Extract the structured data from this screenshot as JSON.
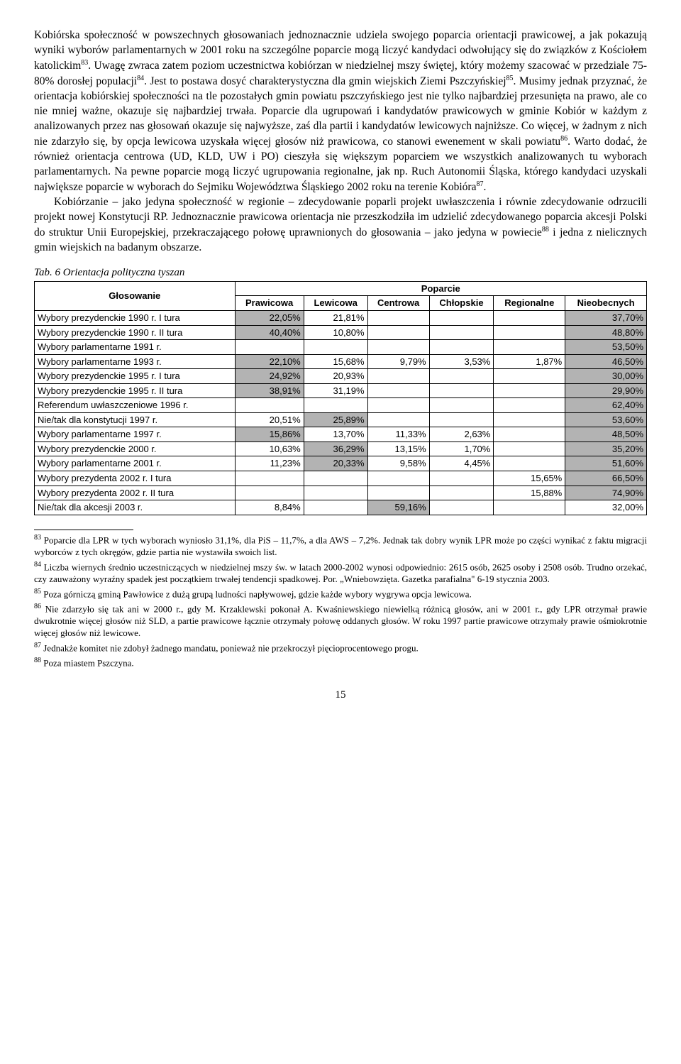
{
  "para1": "Kobiórska społeczność w powszechnych głosowaniach jednoznacznie udziela swojego poparcia orientacji prawicowej, a jak pokazują wyniki wyborów parlamentarnych w 2001 roku na szczególne poparcie mogą liczyć kandydaci odwołujący się do związków z Kościołem katolickim",
  "para1b": ". Uwagę zwraca zatem poziom uczestnictwa kobiórzan w niedzielnej mszy świętej, który możemy szacować w przedziale 75-80% dorosłej populacji",
  "para1c": ". Jest to postawa dosyć charakterystyczna dla gmin wiejskich Ziemi Pszczyńskiej",
  "para1d": ". Musimy jednak przyznać, że orientacja kobiórskiej społeczności na tle pozostałych gmin powiatu pszczyńskiego jest nie tylko najbardziej przesunięta na prawo, ale co nie mniej ważne, okazuje się najbardziej trwała. Poparcie dla ugrupowań i kandydatów prawicowych w gminie Kobiór w każdym z analizowanych przez nas głosowań okazuje się najwyższe, zaś dla partii i kandydatów lewicowych najniższe. Co więcej, w żadnym z nich nie zdarzyło się, by opcja lewicowa uzyskała więcej głosów niż prawicowa, co stanowi ewenement w skali powiatu",
  "para1e": ". Warto dodać, że również orientacja centrowa (UD, KLD, UW i PO) cieszyła się większym poparciem we wszystkich analizowanych tu wyborach parlamentarnych. Na pewne poparcie mogą liczyć ugrupowania regionalne, jak np. Ruch Autonomii Śląska, którego kandydaci uzyskali największe poparcie w wyborach do Sejmiku Województwa Śląskiego 2002 roku na terenie Kobióra",
  "para1f": ".",
  "para2a": "Kobiórzanie – jako jedyna społeczność w regionie – zdecydowanie poparli projekt uwłaszczenia i równie zdecydowanie odrzucili projekt nowej Konstytucji RP. Jednoznacznie prawicowa orientacja nie przeszkodziła im udzielić zdecydowanego poparcia akcesji Polski do struktur Unii Europejskiej, przekraczającego połowę uprawnionych do głosowania – jako jedyna w powiecie",
  "para2b": " i jedna z nielicznych gmin wiejskich na badanym obszarze.",
  "tabcaption": "Tab. 6 Orientacja polityczna tyszan",
  "table": {
    "headers": {
      "glosowanie": "Głosowanie",
      "poparcie": "Poparcie",
      "prawicowa": "Prawicowa",
      "lewicowa": "Lewicowa",
      "centrowa": "Centrowa",
      "chlopskie": "Chłopskie",
      "regionalne": "Regionalne",
      "nieobecnych": "Nieobecnych"
    },
    "rows": [
      {
        "label": "Wybory prezydenckie 1990 r. I tura",
        "c": [
          {
            "v": "22,05%",
            "h": 1
          },
          {
            "v": "21,81%",
            "h": 0
          },
          {
            "v": "",
            "h": 0
          },
          {
            "v": "",
            "h": 0
          },
          {
            "v": "",
            "h": 0
          },
          {
            "v": "37,70%",
            "h": 1
          }
        ]
      },
      {
        "label": "Wybory prezydenckie 1990 r. II tura",
        "c": [
          {
            "v": "40,40%",
            "h": 1
          },
          {
            "v": "10,80%",
            "h": 0
          },
          {
            "v": "",
            "h": 0
          },
          {
            "v": "",
            "h": 0
          },
          {
            "v": "",
            "h": 0
          },
          {
            "v": "48,80%",
            "h": 1
          }
        ]
      },
      {
        "label": "Wybory parlamentarne 1991 r.",
        "c": [
          {
            "v": "",
            "h": 0
          },
          {
            "v": "",
            "h": 0
          },
          {
            "v": "",
            "h": 0
          },
          {
            "v": "",
            "h": 0
          },
          {
            "v": "",
            "h": 0
          },
          {
            "v": "53,50%",
            "h": 1
          }
        ]
      },
      {
        "label": "Wybory parlamentarne 1993 r.",
        "c": [
          {
            "v": "22,10%",
            "h": 1
          },
          {
            "v": "15,68%",
            "h": 0
          },
          {
            "v": "9,79%",
            "h": 0
          },
          {
            "v": "3,53%",
            "h": 0
          },
          {
            "v": "1,87%",
            "h": 0
          },
          {
            "v": "46,50%",
            "h": 1
          }
        ]
      },
      {
        "label": "Wybory prezydenckie 1995 r. I tura",
        "c": [
          {
            "v": "24,92%",
            "h": 1
          },
          {
            "v": "20,93%",
            "h": 0
          },
          {
            "v": "",
            "h": 0
          },
          {
            "v": "",
            "h": 0
          },
          {
            "v": "",
            "h": 0
          },
          {
            "v": "30,00%",
            "h": 1
          }
        ]
      },
      {
        "label": "Wybory prezydenckie 1995 r. II tura",
        "c": [
          {
            "v": "38,91%",
            "h": 1
          },
          {
            "v": "31,19%",
            "h": 0
          },
          {
            "v": "",
            "h": 0
          },
          {
            "v": "",
            "h": 0
          },
          {
            "v": "",
            "h": 0
          },
          {
            "v": "29,90%",
            "h": 1
          }
        ]
      },
      {
        "label": "Referendum uwłaszczeniowe 1996 r.",
        "c": [
          {
            "v": "",
            "h": 0
          },
          {
            "v": "",
            "h": 0
          },
          {
            "v": "",
            "h": 0
          },
          {
            "v": "",
            "h": 0
          },
          {
            "v": "",
            "h": 0
          },
          {
            "v": "62,40%",
            "h": 1
          }
        ]
      },
      {
        "label": "Nie/tak dla konstytucji 1997 r.",
        "c": [
          {
            "v": "20,51%",
            "h": 0
          },
          {
            "v": "25,89%",
            "h": 1
          },
          {
            "v": "",
            "h": 0
          },
          {
            "v": "",
            "h": 0
          },
          {
            "v": "",
            "h": 0
          },
          {
            "v": "53,60%",
            "h": 1
          }
        ]
      },
      {
        "label": "Wybory parlamentarne 1997 r.",
        "c": [
          {
            "v": "15,86%",
            "h": 1
          },
          {
            "v": "13,70%",
            "h": 0
          },
          {
            "v": "11,33%",
            "h": 0
          },
          {
            "v": "2,63%",
            "h": 0
          },
          {
            "v": "",
            "h": 0
          },
          {
            "v": "48,50%",
            "h": 1
          }
        ]
      },
      {
        "label": "Wybory prezydenckie 2000 r.",
        "c": [
          {
            "v": "10,63%",
            "h": 0
          },
          {
            "v": "36,29%",
            "h": 1
          },
          {
            "v": "13,15%",
            "h": 0
          },
          {
            "v": "1,70%",
            "h": 0
          },
          {
            "v": "",
            "h": 0
          },
          {
            "v": "35,20%",
            "h": 1
          }
        ]
      },
      {
        "label": "Wybory parlamentarne 2001 r.",
        "c": [
          {
            "v": "11,23%",
            "h": 0
          },
          {
            "v": "20,33%",
            "h": 1
          },
          {
            "v": "9,58%",
            "h": 0
          },
          {
            "v": "4,45%",
            "h": 0
          },
          {
            "v": "",
            "h": 0
          },
          {
            "v": "51,60%",
            "h": 1
          }
        ]
      },
      {
        "label": "Wybory prezydenta 2002 r. I tura",
        "c": [
          {
            "v": "",
            "h": 0
          },
          {
            "v": "",
            "h": 0
          },
          {
            "v": "",
            "h": 0
          },
          {
            "v": "",
            "h": 0
          },
          {
            "v": "15,65%",
            "h": 0
          },
          {
            "v": "66,50%",
            "h": 1
          }
        ]
      },
      {
        "label": "Wybory prezydenta 2002 r. II tura",
        "c": [
          {
            "v": "",
            "h": 0
          },
          {
            "v": "",
            "h": 0
          },
          {
            "v": "",
            "h": 0
          },
          {
            "v": "",
            "h": 0
          },
          {
            "v": "15,88%",
            "h": 0
          },
          {
            "v": "74,90%",
            "h": 1
          }
        ]
      },
      {
        "label": "Nie/tak dla akcesji 2003 r.",
        "c": [
          {
            "v": "8,84%",
            "h": 0
          },
          {
            "v": "",
            "h": 0
          },
          {
            "v": "59,16%",
            "h": 1
          },
          {
            "v": "",
            "h": 0
          },
          {
            "v": "",
            "h": 0
          },
          {
            "v": "32,00%",
            "h": 0
          }
        ]
      }
    ]
  },
  "fn": {
    "83": " Poparcie dla LPR w tych wyborach wyniosło 31,1%, dla PiS – 11,7%, a dla AWS – 7,2%. Jednak tak dobry wynik LPR może po części wynikać z faktu migracji wyborców z tych okręgów, gdzie partia nie wystawiła swoich list.",
    "84": " Liczba wiernych średnio uczestniczących w niedzielnej mszy św. w latach 2000-2002 wynosi odpowiednio: 2615 osób, 2625 osoby i 2508 osób. Trudno orzekać, czy zauważony wyraźny spadek jest początkiem trwałej tendencji spadkowej. Por. „Wniebowzięta. Gazetka parafialna\" 6-19 stycznia 2003.",
    "85": " Poza górniczą gminą Pawłowice z dużą grupą ludności napływowej, gdzie każde wybory wygrywa opcja lewicowa.",
    "86": " Nie zdarzyło się tak ani w 2000 r., gdy M. Krzaklewski pokonał A. Kwaśniewskiego niewielką różnicą głosów, ani w 2001 r., gdy LPR otrzymał prawie dwukrotnie więcej głosów niż SLD, a partie prawicowe łącznie otrzymały połowę oddanych głosów. W roku 1997 partie prawicowe otrzymały prawie ośmiokrotnie więcej głosów niż lewicowe.",
    "87": " Jednakże komitet nie zdobył żadnego mandatu, ponieważ nie przekroczył pięcioprocentowego progu.",
    "88": " Poza miastem Pszczyna."
  },
  "pagenum": "15"
}
